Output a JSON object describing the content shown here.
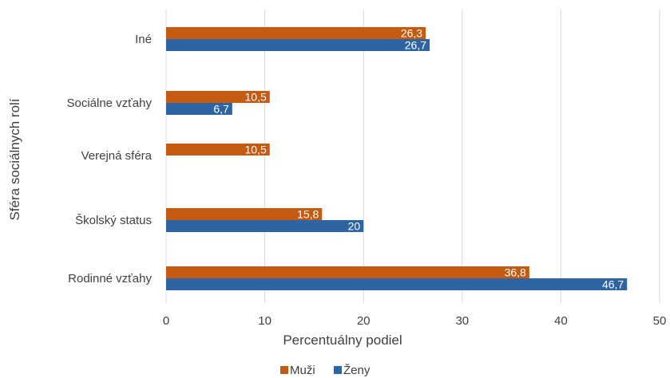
{
  "chart_data": {
    "type": "bar",
    "orientation": "horizontal",
    "categories": [
      "Iné",
      "Sociálne vzťahy",
      "Verejná sféra",
      "Školský status",
      "Rodinné vzťahy"
    ],
    "series": [
      {
        "name": "Muži",
        "color": "#C55A11",
        "values": [
          26.3,
          10.5,
          10.5,
          15.8,
          36.8
        ],
        "labels": [
          "26,3",
          "10,5",
          "10,5",
          "15,8",
          "36,8"
        ]
      },
      {
        "name": "Ženy",
        "color": "#2E64A4",
        "values": [
          26.7,
          6.7,
          null,
          20,
          46.7
        ],
        "labels": [
          "26,7",
          "6,7",
          "",
          "20",
          "46,7"
        ]
      }
    ],
    "xlabel": "Percentuálny podiel",
    "ylabel": "Sféra sociálnych rolí",
    "xlim": [
      0,
      50
    ],
    "xticks": [
      0,
      10,
      20,
      30,
      40,
      50
    ],
    "xtick_labels": [
      "0",
      "10",
      "20",
      "30",
      "40",
      "50"
    ],
    "grid": true,
    "legend_position": "bottom"
  }
}
